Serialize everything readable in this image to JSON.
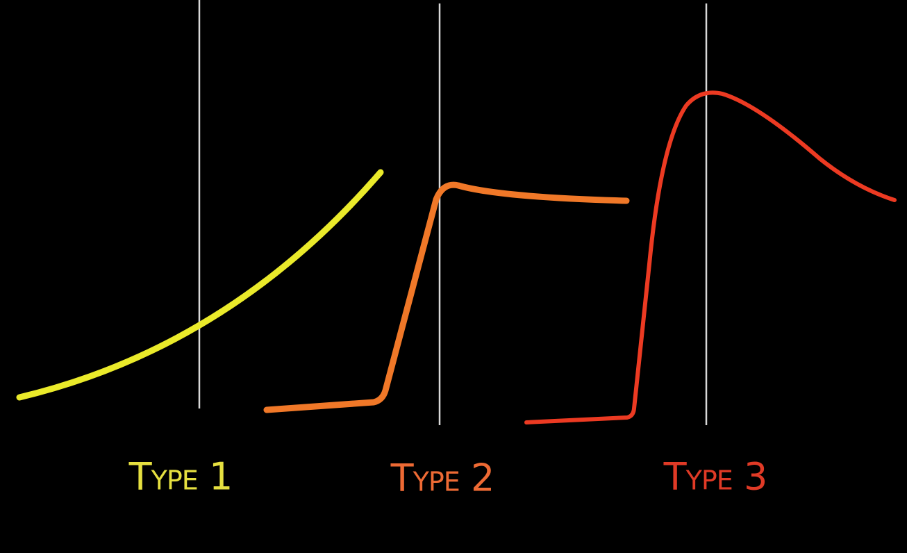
{
  "labels": [
    {
      "text": "Type 1"
    },
    {
      "text": "Type 2"
    },
    {
      "text": "Type 3"
    }
  ]
}
